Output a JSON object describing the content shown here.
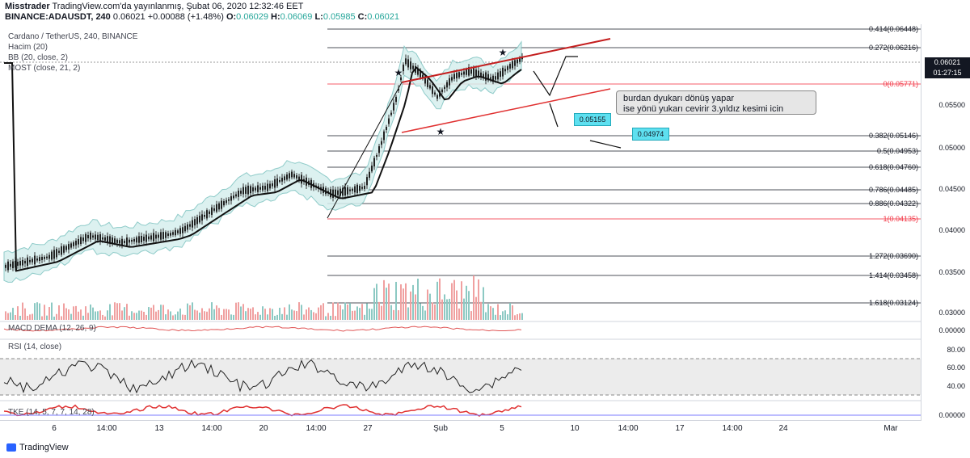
{
  "header": {
    "user": "Misstrader",
    "published": "TradingView.com'da yayınlanmış, Şubat 06, 2020 12:32:46 EET",
    "symbol": "BINANCE:ADAUSDT, 240",
    "last": "0.06021",
    "change": "+0.00088 (+1.48%)",
    "o_label": "O:",
    "o_val": "0.06029",
    "h_label": "H:",
    "h_val": "0.06069",
    "l_label": "L:",
    "l_val": "0.05985",
    "c_label": "C:",
    "c_val": "0.06021"
  },
  "studies": {
    "title": "Cardano / TetherUS, 240, BINANCE",
    "volume": "Hacim (20)",
    "bb": "BB (20, close, 2)",
    "most": "MOST (close, 21, 2)",
    "macd": "MACD DEMA (12, 26, 9)",
    "rsi": "RSI (14, close)",
    "tke": "TKE (14, 5, 7, 7, 14, 28)"
  },
  "price_axis": {
    "ticks": [
      "0.05500",
      "0.05000",
      "0.04500",
      "0.04000",
      "0.03500",
      "0.03000"
    ],
    "current_price": "0.06021",
    "countdown": "01:27:15",
    "macd_tick": "0.00000",
    "rsi_ticks": [
      "80.00",
      "60.00",
      "40.00"
    ],
    "tke_tick": "0.00000"
  },
  "fib_levels": [
    {
      "label": "0.414(0.06448)",
      "red": false
    },
    {
      "label": "0.272(0.06216)",
      "red": false
    },
    {
      "label": "0(0.05771)",
      "red": true
    },
    {
      "label": "0.382(0.05146)",
      "red": false
    },
    {
      "label": "0.5(0.04953)",
      "red": false
    },
    {
      "label": "0.618(0.04760)",
      "red": false
    },
    {
      "label": "0.786(0.04485)",
      "red": false
    },
    {
      "label": "0.886(0.04322)",
      "red": false
    },
    {
      "label": "1(0.04135)",
      "red": true
    },
    {
      "label": "1.272(0.03690)",
      "red": false
    },
    {
      "label": "1.414(0.03458)",
      "red": false
    },
    {
      "label": "1.618(0.03124)",
      "red": false
    }
  ],
  "annotations": {
    "note_line1": "burdan dyukarı dönüş yapar",
    "note_line2": "ise yönü yukarı cevirir 3.yıldız kesimi icin",
    "box1": "0.05155",
    "box2": "0.04974"
  },
  "time_axis": [
    "6",
    "14:00",
    "13",
    "14:00",
    "20",
    "14:00",
    "27",
    "Şub",
    "5",
    "10",
    "14:00",
    "17",
    "14:00",
    "24",
    "Mar"
  ],
  "footer": {
    "brand": "TradingView"
  },
  "colors": {
    "up": "#26a69a",
    "down": "#ef5350",
    "bb_fill": "#d6efee",
    "red_line": "#c41e1e",
    "fib_line": "#131722"
  }
}
